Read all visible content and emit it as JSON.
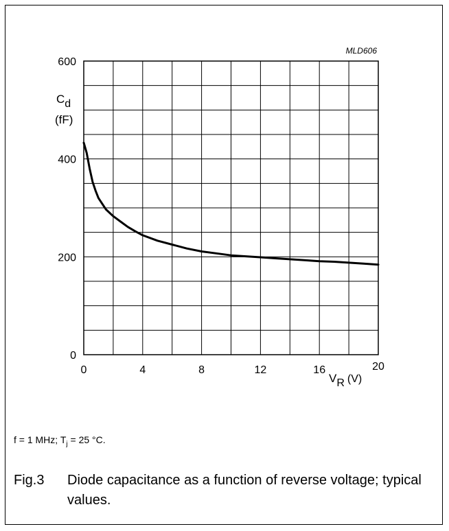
{
  "figure_code": "MLD606",
  "conditions": {
    "f_text": "f = 1 MHz; T",
    "tj_sub": "j",
    "tail": " = 25 °C."
  },
  "caption": {
    "number": "Fig.3",
    "text": "Diode capacitance as a function of reverse voltage; typical values."
  },
  "chart_data": {
    "type": "line",
    "title": "",
    "xlabel": {
      "main": "V",
      "sub": "R",
      "unit": "(V)"
    },
    "ylabel": {
      "main": "C",
      "sub": "d",
      "unit": "(fF)"
    },
    "xlim": [
      0,
      20
    ],
    "ylim": [
      0,
      600
    ],
    "x_ticks": [
      0,
      4,
      8,
      12,
      16,
      20
    ],
    "y_ticks": [
      0,
      200,
      400,
      600
    ],
    "grid": true,
    "series": [
      {
        "x": [
          0,
          0.2,
          0.4,
          0.6,
          0.8,
          1.0,
          1.5,
          2.0,
          2.5,
          3.0,
          3.5,
          4.0,
          5.0,
          6.0,
          7.0,
          8.0,
          9.0,
          10.0,
          11.0,
          12.0,
          13.0,
          14.0,
          15.0,
          16.0,
          17.0,
          18.0,
          19.0,
          20.0
        ],
        "values": [
          433,
          412,
          380,
          353,
          335,
          320,
          297,
          283,
          272,
          261,
          252,
          244,
          233,
          225,
          217,
          211,
          207,
          203,
          201,
          199,
          197,
          195,
          193,
          191,
          190,
          188,
          186,
          184
        ]
      }
    ]
  }
}
